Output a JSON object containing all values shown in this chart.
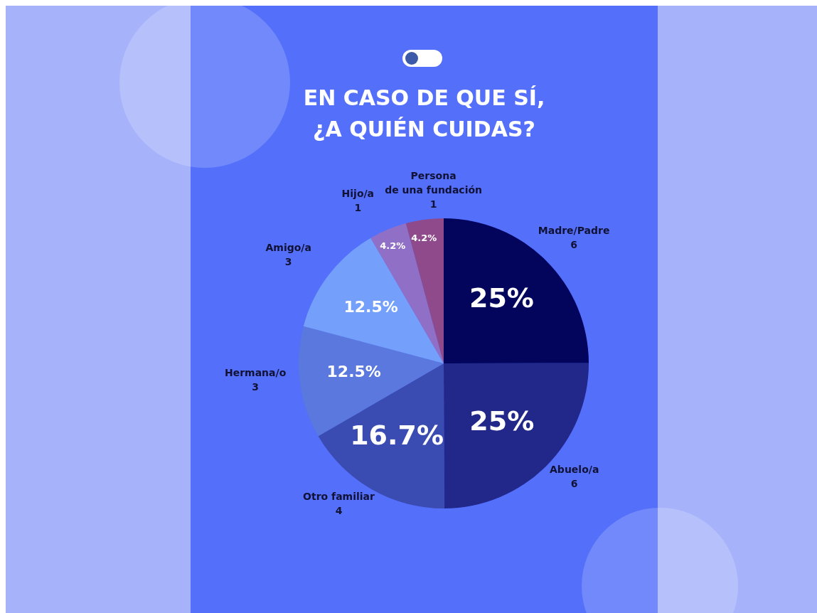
{
  "chart_data": {
    "type": "pie",
    "title": "EN CASO DE QUE SÍ,\n¿A QUIÉN CUIDAS?",
    "categories": [
      "Madre/Padre\n6",
      "Abuelo/a\n6",
      "Otro familiar\n4",
      "Hermana/o\n3",
      "Amigo/a\n3",
      "Hijo/a\n1",
      "Persona\nde una fundación\n1"
    ],
    "values": [
      25,
      25,
      16.7,
      12.5,
      12.5,
      4.2,
      4.2
    ],
    "value_labels": [
      "25%",
      "25%",
      "16.7%",
      "12.5%",
      "12.5%",
      "4.2%",
      "4.2%"
    ],
    "colors": [
      "#03045c",
      "#22278a",
      "#3a4bb2",
      "#5a78dd",
      "#74a0fb",
      "#9070c6",
      "#8f4a8c"
    ]
  }
}
